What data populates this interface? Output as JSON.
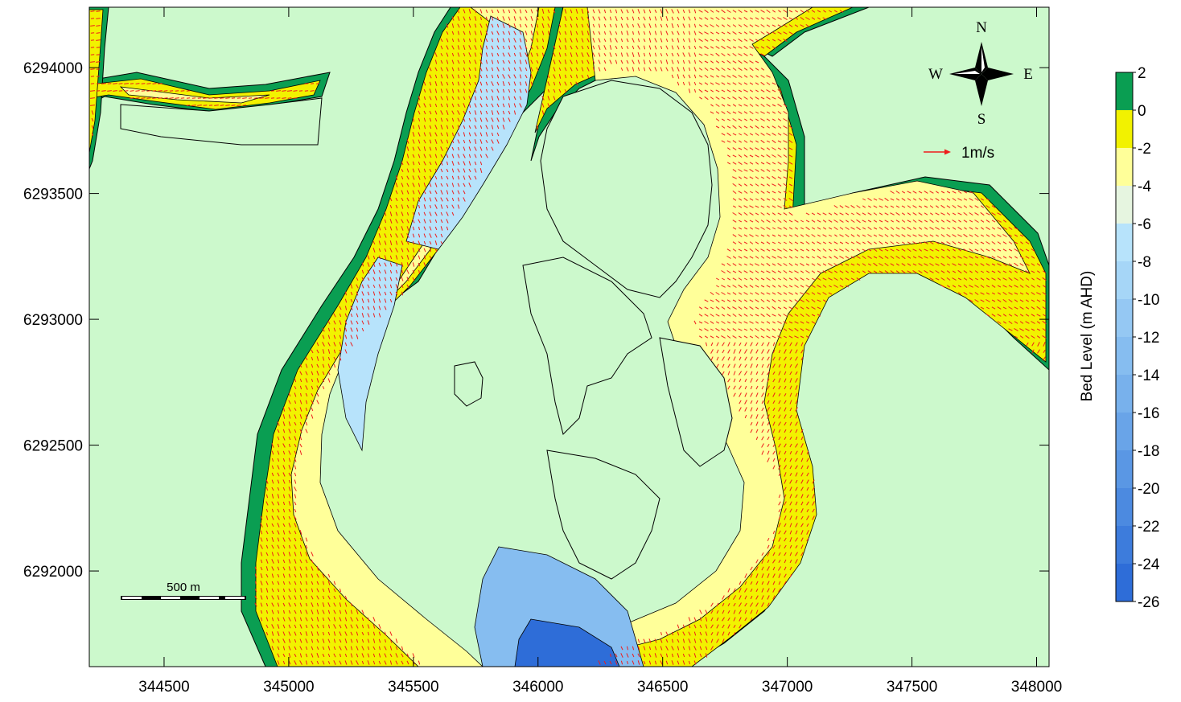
{
  "map": {
    "x_axis": {
      "ticks": [
        "344500",
        "345000",
        "345500",
        "346000",
        "346500",
        "347000",
        "347500",
        "348000"
      ],
      "range": [
        344200,
        348050
      ]
    },
    "y_axis": {
      "ticks": [
        "6292000",
        "6292500",
        "6293000",
        "6293500",
        "6294000"
      ],
      "range": [
        6291620,
        6294240
      ]
    },
    "compass": {
      "n": "N",
      "s": "S",
      "e": "E",
      "w": "W"
    },
    "velocity_legend": {
      "label": "1m/s",
      "color": "#ee1c1c"
    },
    "scale_bar": {
      "label": "500 m"
    },
    "colorbar": {
      "title": "Bed Level (m AHD)",
      "levels": [
        "2",
        "0",
        "-2",
        "-4",
        "-6",
        "-8",
        "-10",
        "-12",
        "-14",
        "-16",
        "-18",
        "-20",
        "-22",
        "-24",
        "-26"
      ],
      "colors": [
        "#0a9e52",
        "#f2f200",
        "#ffff99",
        "#e6f5e0",
        "#b7e3fb",
        "#a6d6f7",
        "#95c8f3",
        "#86bdf0",
        "#78b1ec",
        "#69a4e8",
        "#5a97e4",
        "#4c8ae0",
        "#3d7cdc",
        "#2e6dd8"
      ]
    },
    "colors": {
      "land": "#ccf9cc",
      "bank": "#0a9e52",
      "shallow": "#f2f200",
      "mid": "#ffff99",
      "deep_light": "#e6f5e0",
      "deep": "#b7e3fb",
      "deeper": "#86bdf0",
      "deepest": "#2e6dd8",
      "vector": "#ee1c1c"
    }
  }
}
